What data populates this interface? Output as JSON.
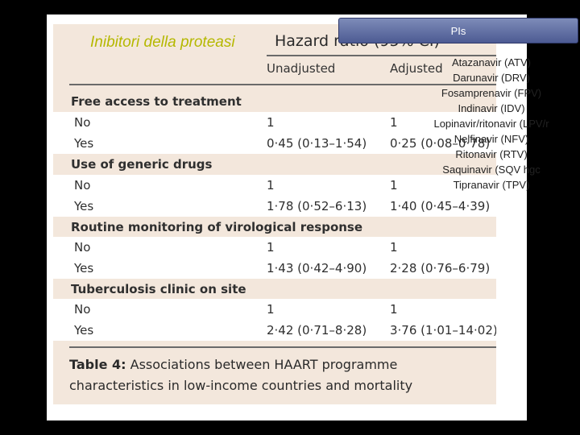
{
  "slide": {
    "title": "Inibitori della proteasi",
    "pis_label": "PIs",
    "drugs": [
      "Atazanavir (ATV)",
      "Darunavir (DRV)",
      "Fosamprenavir (FPV)",
      "Indinavir (IDV)",
      "Lopinavir/ritonavir (LPV/r",
      "Nelfinavir (NFV)",
      "Ritonavir (RTV)",
      "Saquinavir (SQV hgc",
      "Tipranavir (TPV)"
    ]
  },
  "table": {
    "header": "Hazard ratio (95% CI)",
    "col_unadjusted": "Unadjusted",
    "col_adjusted": "Adjusted",
    "sections": [
      {
        "label": "Free access to treatment",
        "rows": [
          {
            "label": "No",
            "unadjusted": "1",
            "adjusted": "1"
          },
          {
            "label": "Yes",
            "unadjusted": "0·45 (0·13–1·54)",
            "adjusted": "0·25 (0·08–0·78)"
          }
        ]
      },
      {
        "label": "Use of generic drugs",
        "rows": [
          {
            "label": "No",
            "unadjusted": "1",
            "adjusted": "1"
          },
          {
            "label": "Yes",
            "unadjusted": "1·78 (0·52–6·13)",
            "adjusted": "1·40 (0·45–4·39)"
          }
        ]
      },
      {
        "label": "Routine monitoring of virological response",
        "rows": [
          {
            "label": "No",
            "unadjusted": "1",
            "adjusted": "1"
          },
          {
            "label": "Yes",
            "unadjusted": "1·43 (0·42–4·90)",
            "adjusted": "2·28 (0·76–6·79)"
          }
        ]
      },
      {
        "label": "Tuberculosis clinic on site",
        "rows": [
          {
            "label": "No",
            "unadjusted": "1",
            "adjusted": "1"
          },
          {
            "label": "Yes",
            "unadjusted": "2·42 (0·71–8·28)",
            "adjusted": "3·76 (1·01–14·02)"
          }
        ]
      }
    ],
    "caption_bold": "Table 4:",
    "caption_text": " Associations between HAART programme characteristics in low-income countries and mortality"
  }
}
